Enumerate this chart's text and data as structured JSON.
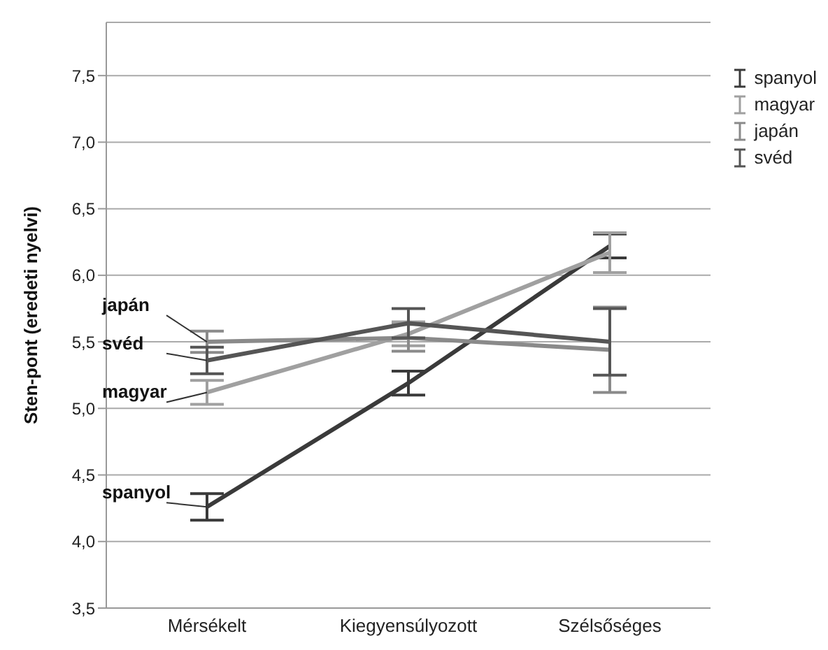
{
  "chart_data": {
    "type": "line",
    "ylabel": "Sten-pont (eredeti nyelvi)",
    "categories": [
      "Mérsékelt",
      "Kiegyensúlyozott",
      "Szélsőséges"
    ],
    "series": [
      {
        "name": "spanyol",
        "color": "#3a3a3a",
        "values": [
          4.26,
          5.19,
          6.22
        ],
        "errors": [
          0.1,
          0.09,
          0.09
        ]
      },
      {
        "name": "magyar",
        "color": "#a0a0a0",
        "values": [
          5.12,
          5.56,
          6.17
        ],
        "errors": [
          0.09,
          0.09,
          0.15
        ]
      },
      {
        "name": "japán",
        "color": "#8a8a8a",
        "values": [
          5.5,
          5.53,
          5.44
        ],
        "errors": [
          0.08,
          0.1,
          0.32
        ]
      },
      {
        "name": "svéd",
        "color": "#555555",
        "values": [
          5.36,
          5.64,
          5.5
        ],
        "errors": [
          0.1,
          0.11,
          0.25
        ]
      }
    ],
    "ylim": [
      3.5,
      7.9
    ],
    "yticks": [
      {
        "value": 3.5,
        "label": "3,5"
      },
      {
        "value": 4.0,
        "label": "4,0"
      },
      {
        "value": 4.5,
        "label": "4,5"
      },
      {
        "value": 5.0,
        "label": "5,0"
      },
      {
        "value": 5.5,
        "label": "5,5"
      },
      {
        "value": 6.0,
        "label": "6,0"
      },
      {
        "value": 6.5,
        "label": "6,5"
      },
      {
        "value": 7.0,
        "label": "7,0"
      },
      {
        "value": 7.5,
        "label": "7,5"
      }
    ],
    "grid": "y",
    "legend": "top right",
    "marker": "none",
    "annotations": [
      {
        "text": "japán",
        "x": "Mérsékelt",
        "y": 5.5
      },
      {
        "text": "svéd",
        "x": "Mérsékelt",
        "y": 5.36
      },
      {
        "text": "magyar",
        "x": "Mérsékelt",
        "y": 5.12
      },
      {
        "text": "spanyol",
        "x": "Mérsékelt",
        "y": 4.26
      }
    ]
  }
}
